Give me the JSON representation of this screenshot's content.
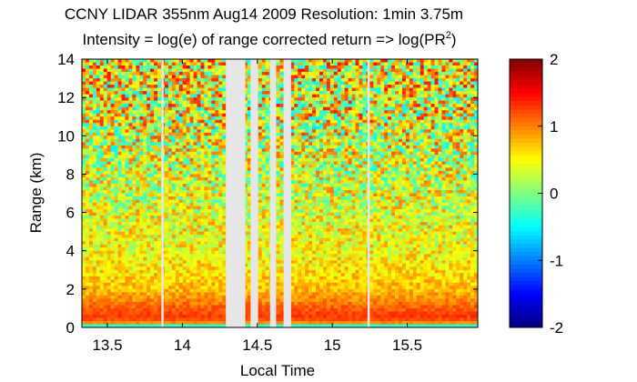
{
  "chart_data": {
    "type": "heatmap",
    "title_line1": "CCNY LIDAR 355nm Aug14 2009 Resolution: 1min 3.75m",
    "title_line2_main": "Intensity = log(e) of range corrected return => log(PR",
    "title_line2_sup": "2",
    "title_line2_end": ")",
    "xlabel": "Local Time",
    "ylabel": "Range (km)",
    "xlim": [
      13.33,
      15.97
    ],
    "ylim": [
      0,
      14
    ],
    "x_ticks": [
      13.5,
      14,
      14.5,
      15,
      15.5
    ],
    "x_tick_labels": [
      "13.5",
      "14",
      "14.5",
      "15",
      "15.5"
    ],
    "y_ticks": [
      0,
      2,
      4,
      6,
      8,
      10,
      12,
      14
    ],
    "y_tick_labels": [
      "0",
      "2",
      "4",
      "6",
      "8",
      "10",
      "12",
      "14"
    ],
    "colorbar": {
      "range": [
        -2,
        2
      ],
      "ticks": [
        -2,
        -1,
        0,
        1,
        2
      ],
      "tick_labels": [
        "-2",
        "-1",
        "0",
        "1",
        "2"
      ],
      "colormap": "jet"
    },
    "gaps_local_time": [
      [
        13.86,
        13.875
      ],
      [
        14.29,
        14.42
      ],
      [
        14.455,
        14.505
      ],
      [
        14.585,
        14.625
      ],
      [
        14.675,
        14.725
      ],
      [
        15.235,
        15.25
      ]
    ],
    "gap_color": "#e6e6e6",
    "intensity_profile": [
      {
        "range_km": 0.1,
        "value": 0.3
      },
      {
        "range_km": 0.2,
        "value": 0.9
      },
      {
        "range_km": 0.5,
        "value": 1.3
      },
      {
        "range_km": 1.0,
        "value": 1.15
      },
      {
        "range_km": 1.5,
        "value": 0.95
      },
      {
        "range_km": 2.0,
        "value": 0.75
      },
      {
        "range_km": 3.0,
        "value": 0.6
      },
      {
        "range_km": 4.0,
        "value": 0.5
      },
      {
        "range_km": 6.0,
        "value": 0.4
      },
      {
        "range_km": 8.0,
        "value": 0.3
      },
      {
        "range_km": 10.0,
        "value": 0.35
      },
      {
        "range_km": 12.0,
        "value": 0.45
      },
      {
        "range_km": 14.0,
        "value": 0.5
      }
    ]
  }
}
